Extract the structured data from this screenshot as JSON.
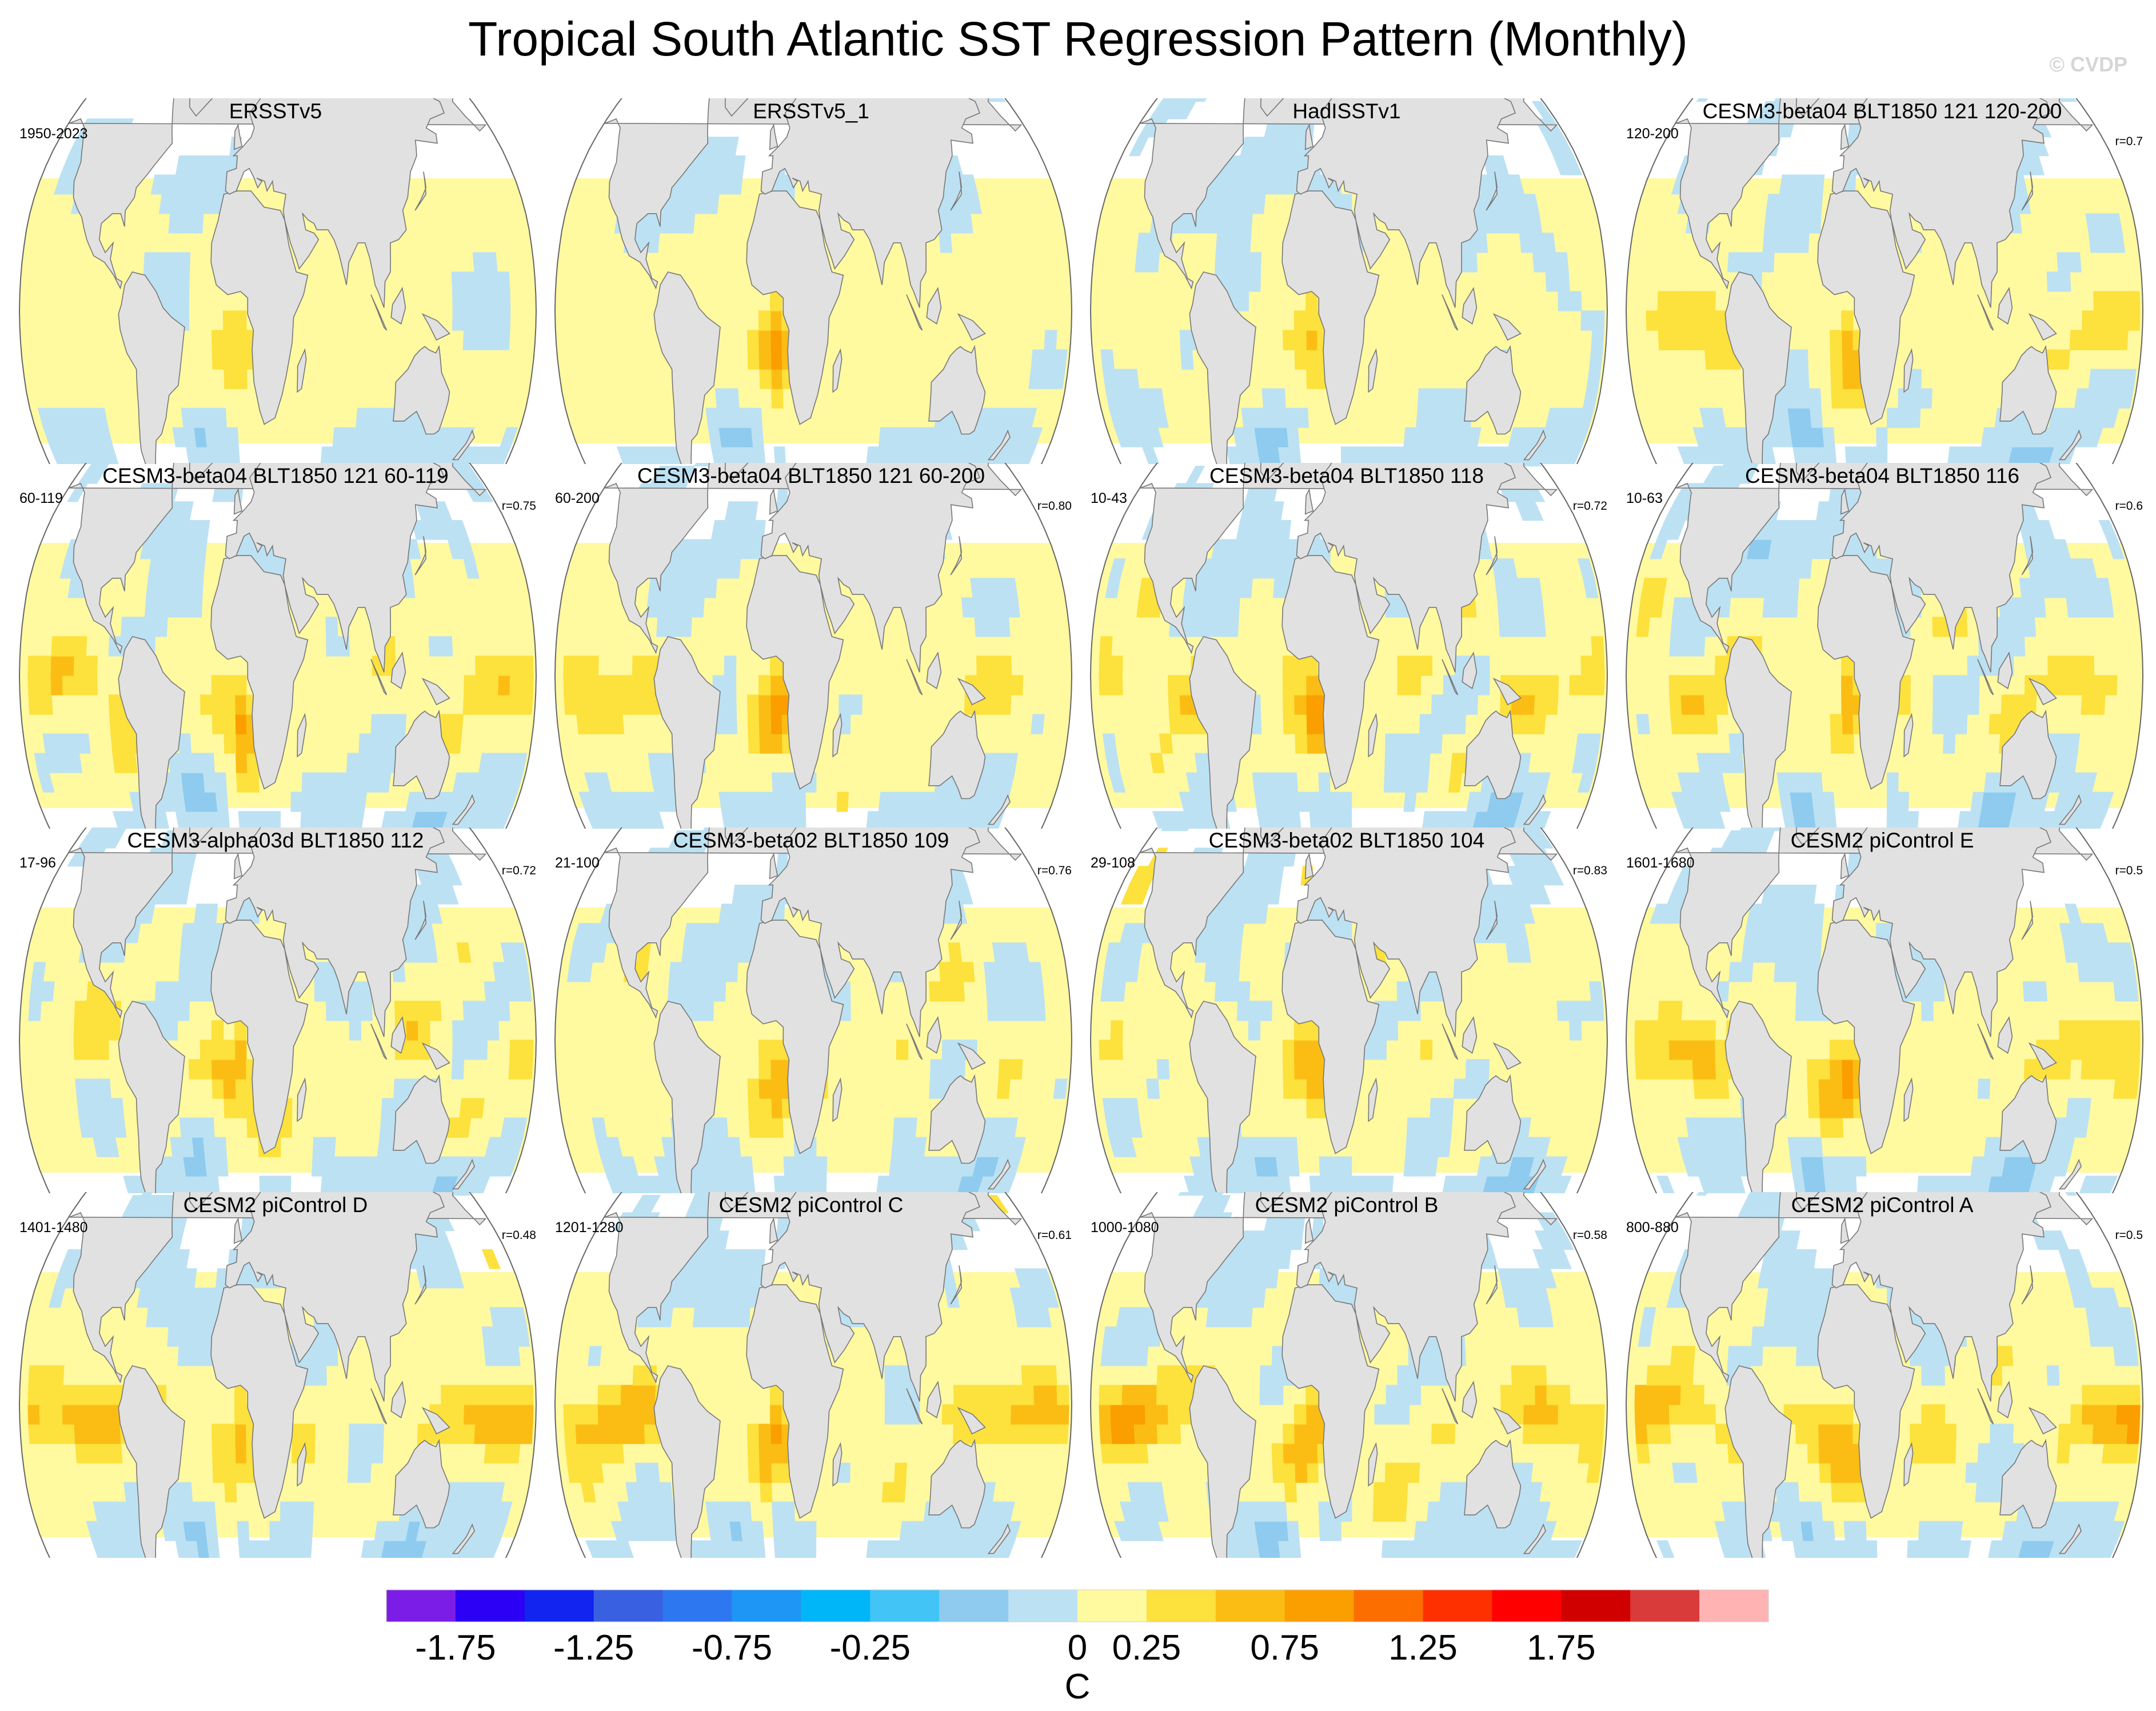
{
  "title": "Tropical South Atlantic SST Regression Pattern (Monthly)",
  "watermark": "© CVDP",
  "colors": {
    "land": "#e1e1e1",
    "coast": "#777777",
    "ocean_neutral": "#fff9a0",
    "outline": "#666666"
  },
  "chart_data": {
    "type": "heatmap",
    "projection": "robinson",
    "variable": "SST regression onto Tropical South Atlantic index",
    "units": "C",
    "colorbar": {
      "label": "C",
      "colors": [
        "#7b1de6",
        "#2c00f5",
        "#1224f0",
        "#3860e0",
        "#2d78f0",
        "#1e96f5",
        "#00b6f8",
        "#42c4f6",
        "#8ecbef",
        "#bce1f3",
        "#fff9a0",
        "#fde13c",
        "#fbbd14",
        "#fb9e00",
        "#fc6e00",
        "#fe3000",
        "#ff0000",
        "#d10000",
        "#d93a3a",
        "#ffb3b3"
      ],
      "tick_labels": [
        "-1.75",
        "-1.25",
        "-0.75",
        "-0.25",
        "0",
        "0.25",
        "0.75",
        "1.25",
        "1.75"
      ],
      "tick_boundaries": [
        1,
        3,
        5,
        7,
        10,
        11,
        13,
        15,
        17
      ]
    },
    "panels": [
      {
        "title": "ERSSTv5",
        "years": "1950-2023",
        "r": "",
        "pacific": 0.0,
        "sa_warm": 0.32,
        "sa_cold": -0.42,
        "noise": 0.0,
        "seed": 3
      },
      {
        "title": "ERSSTv5_1",
        "years": "",
        "r": "",
        "pacific": 0.05,
        "sa_warm": 0.45,
        "sa_cold": -0.45,
        "noise": 0.0,
        "seed": 7
      },
      {
        "title": "HadISSTv1",
        "years": "",
        "r": "",
        "pacific": 0.0,
        "sa_warm": 0.38,
        "sa_cold": -0.4,
        "noise": 0.15,
        "seed": 11
      },
      {
        "title": "CESM3-beta04 BLT1850 121 120-200",
        "years": "120-200",
        "r": "r=0.7",
        "pacific": 0.32,
        "sa_warm": 0.38,
        "sa_cold": -0.55,
        "noise": 0.2,
        "seed": 13
      },
      {
        "title": "CESM3-beta04 BLT1850 121 60-119",
        "years": "60-119",
        "r": "r=0.75",
        "pacific": 0.35,
        "sa_warm": 0.42,
        "sa_cold": -0.4,
        "noise": 0.22,
        "seed": 17
      },
      {
        "title": "CESM3-beta04 BLT1850 121 60-200",
        "years": "60-200",
        "r": "r=0.80",
        "pacific": 0.33,
        "sa_warm": 0.42,
        "sa_cold": -0.42,
        "noise": 0.2,
        "seed": 19
      },
      {
        "title": "CESM3-beta04 BLT1850 118",
        "years": "10-43",
        "r": "r=0.72",
        "pacific": 0.3,
        "sa_warm": 0.45,
        "sa_cold": -0.45,
        "noise": 0.3,
        "seed": 23
      },
      {
        "title": "CESM3-beta04 BLT1850 116",
        "years": "10-63",
        "r": "r=0.6",
        "pacific": 0.25,
        "sa_warm": 0.38,
        "sa_cold": -0.35,
        "noise": 0.3,
        "seed": 29
      },
      {
        "title": "CESM3-alpha03d BLT1850 112",
        "years": "17-96",
        "r": "r=0.72",
        "pacific": 0.15,
        "sa_warm": 0.42,
        "sa_cold": -0.4,
        "noise": 0.3,
        "seed": 31
      },
      {
        "title": "CESM3-beta02 BLT1850 109",
        "years": "21-100",
        "r": "r=0.76",
        "pacific": 0.12,
        "sa_warm": 0.45,
        "sa_cold": -0.5,
        "noise": 0.25,
        "seed": 37
      },
      {
        "title": "CESM3-beta02 BLT1850 104",
        "years": "29-108",
        "r": "r=0.83",
        "pacific": 0.15,
        "sa_warm": 0.42,
        "sa_cold": -0.45,
        "noise": 0.25,
        "seed": 41
      },
      {
        "title": "CESM2 piControl E",
        "years": "1601-1680",
        "r": "r=0.5",
        "pacific": 0.42,
        "sa_warm": 0.42,
        "sa_cold": -0.5,
        "noise": 0.2,
        "seed": 43
      },
      {
        "title": "CESM2 piControl D",
        "years": "1401-1480",
        "r": "r=0.48",
        "pacific": 0.5,
        "sa_warm": 0.4,
        "sa_cold": -0.45,
        "noise": 0.2,
        "seed": 47
      },
      {
        "title": "CESM2 piControl C",
        "years": "1201-1280",
        "r": "r=0.61",
        "pacific": 0.48,
        "sa_warm": 0.42,
        "sa_cold": -0.45,
        "noise": 0.2,
        "seed": 53
      },
      {
        "title": "CESM2 piControl B",
        "years": "1000-1080",
        "r": "r=0.58",
        "pacific": 0.48,
        "sa_warm": 0.42,
        "sa_cold": -0.5,
        "noise": 0.2,
        "seed": 59
      },
      {
        "title": "CESM2 piControl A",
        "years": "800-880",
        "r": "r=0.5",
        "pacific": 0.45,
        "sa_warm": 0.42,
        "sa_cold": -0.4,
        "noise": 0.2,
        "seed": 61
      }
    ]
  }
}
